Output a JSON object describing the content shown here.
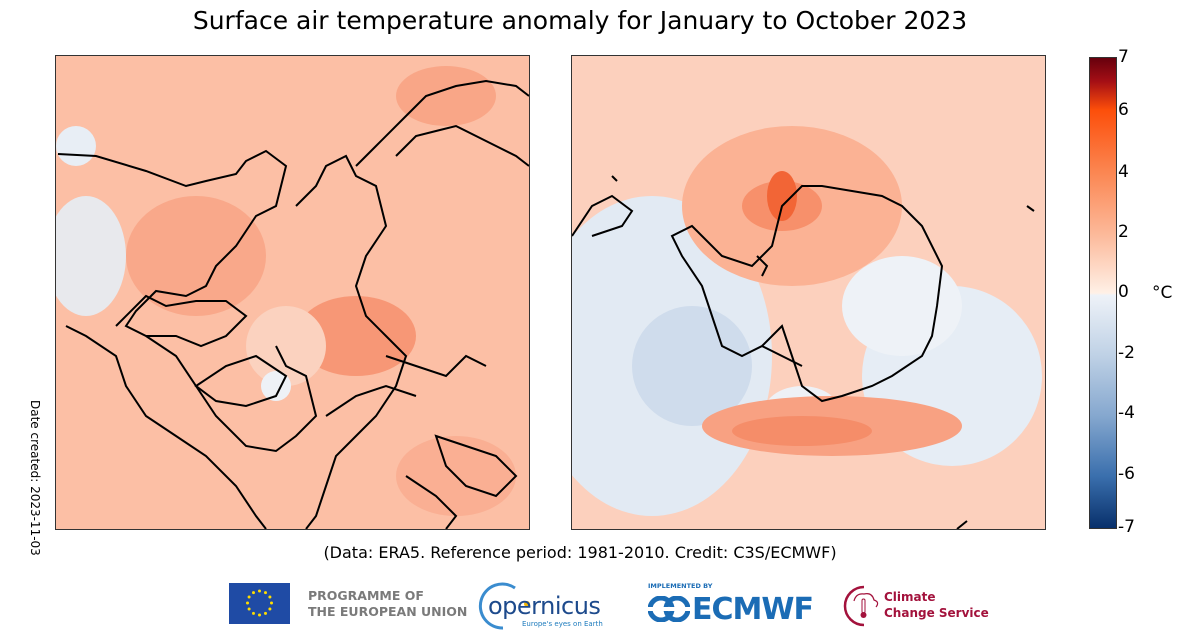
{
  "title": "Surface air temperature anomaly for January to October 2023",
  "date_created": "Date created: 2023-11-03",
  "credit": "(Data: ERA5.  Reference period: 1981-2010.  Credit: C3S/ECMWF)",
  "colorbar": {
    "ticks": [
      "7",
      "6",
      "4",
      "2",
      "0",
      "-2",
      "-4",
      "-6",
      "-7"
    ],
    "unit": "°C",
    "min": -7,
    "max": 7,
    "colors": {
      "max": "#67000d",
      "warm": "#fc4e0a",
      "zero": "#ffffff",
      "cool": "#86a8cf",
      "min": "#08306b"
    }
  },
  "maps": [
    {
      "region": "Arctic"
    },
    {
      "region": "Antarctic"
    }
  ],
  "logos": {
    "eu_line1": "PROGRAMME OF",
    "eu_line2": "THE EUROPEAN UNION",
    "copernicus": "opernicus",
    "copernicus_sub": "Europe's eyes on Earth",
    "ecmwf_impl": "IMPLEMENTED BY",
    "ecmwf": "ECMWF",
    "ccs_line1": "Climate",
    "ccs_line2": "Change Service"
  }
}
